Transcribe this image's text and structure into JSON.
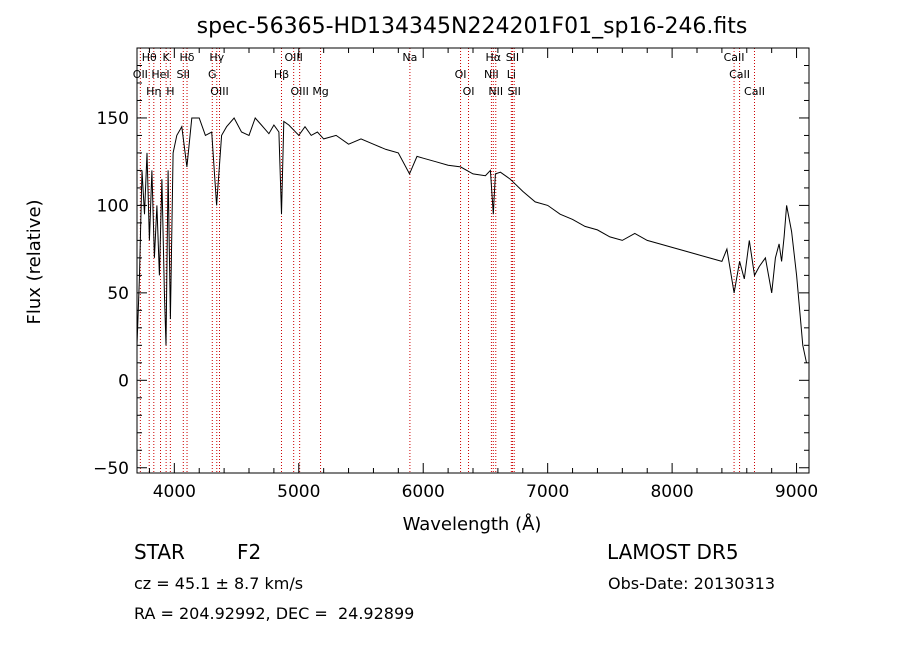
{
  "chart_data": {
    "type": "line",
    "title": "spec-56365-HD134345N224201F01_sp16-246.fits",
    "xlabel": "Wavelength (Å)",
    "ylabel": "Flux (relative)",
    "xlim": [
      3700,
      9100
    ],
    "ylim": [
      -53,
      190
    ],
    "xticks": [
      4000,
      5000,
      6000,
      7000,
      8000,
      9000
    ],
    "yticks": [
      -50,
      0,
      50,
      100,
      150
    ],
    "grid": false,
    "series": [
      {
        "x": [
          3700,
          3720,
          3740,
          3760,
          3780,
          3800,
          3820,
          3840,
          3860,
          3880,
          3900,
          3920,
          3933,
          3950,
          3968,
          3990,
          4020,
          4060,
          4101,
          4140,
          4200,
          4250,
          4300,
          4340,
          4380,
          4420,
          4480,
          4540,
          4600,
          4650,
          4700,
          4760,
          4800,
          4840,
          4861,
          4880,
          4920,
          4960,
          5000,
          5050,
          5100,
          5150,
          5200,
          5300,
          5400,
          5500,
          5600,
          5700,
          5800,
          5890,
          5950,
          6000,
          6100,
          6200,
          6300,
          6400,
          6500,
          6540,
          6563,
          6580,
          6620,
          6700,
          6800,
          6900,
          7000,
          7100,
          7200,
          7300,
          7400,
          7500,
          7600,
          7700,
          7800,
          7900,
          8000,
          8100,
          8200,
          8300,
          8400,
          8440,
          8498,
          8542,
          8580,
          8620,
          8662,
          8700,
          8750,
          8800,
          8830,
          8860,
          8880,
          8900,
          8920,
          8960,
          9000,
          9050,
          9080
        ],
        "y": [
          20,
          60,
          120,
          95,
          130,
          80,
          120,
          70,
          100,
          60,
          115,
          50,
          20,
          120,
          35,
          130,
          140,
          145,
          122,
          150,
          150,
          140,
          142,
          100,
          140,
          145,
          150,
          142,
          140,
          150,
          146,
          141,
          146,
          142,
          95,
          148,
          146,
          143,
          140,
          145,
          140,
          142,
          138,
          140,
          135,
          138,
          135,
          132,
          130,
          118,
          128,
          127,
          125,
          123,
          122,
          118,
          117,
          120,
          95,
          118,
          119,
          115,
          108,
          102,
          100,
          95,
          92,
          88,
          86,
          82,
          80,
          84,
          80,
          78,
          76,
          74,
          72,
          70,
          68,
          75,
          50,
          68,
          58,
          80,
          60,
          65,
          70,
          50,
          70,
          78,
          68,
          82,
          100,
          85,
          60,
          20,
          10
        ]
      }
    ],
    "lines": [
      {
        "name": "Hθ",
        "x": 3798
      },
      {
        "name": "OII",
        "x": 3727
      },
      {
        "name": "Hη",
        "x": 3835
      },
      {
        "name": "K",
        "x": 3934
      },
      {
        "name": "HeI",
        "x": 3889
      },
      {
        "name": "H",
        "x": 3968
      },
      {
        "name": "Hδ",
        "x": 4102
      },
      {
        "name": "SII",
        "x": 4072
      },
      {
        "name": "OIII",
        "x": 4363
      },
      {
        "name": "Hγ",
        "x": 4341
      },
      {
        "name": "G",
        "x": 4305
      },
      {
        "name": "OIII",
        "x": 5007
      },
      {
        "name": "OIII",
        "x": 4959
      },
      {
        "name": "Hβ",
        "x": 4861
      },
      {
        "name": "Mg",
        "x": 5175
      },
      {
        "name": "Na",
        "x": 5893
      },
      {
        "name": "OI",
        "x": 6300
      },
      {
        "name": "OI",
        "x": 6364
      },
      {
        "name": "Hα",
        "x": 6563
      },
      {
        "name": "NII",
        "x": 6548
      },
      {
        "name": "NII",
        "x": 6583
      },
      {
        "name": "SII",
        "x": 6717
      },
      {
        "name": "Li",
        "x": 6708
      },
      {
        "name": "SII",
        "x": 6731
      },
      {
        "name": "CaII",
        "x": 8498
      },
      {
        "name": "CaII",
        "x": 8542
      },
      {
        "name": "CaII",
        "x": 8662
      }
    ]
  },
  "info": {
    "object": "STAR",
    "subclass": "F2",
    "survey": "LAMOST DR5",
    "cz": "cz = 45.1 ± 8.7 km/s",
    "obs_date": "Obs-Date: 20130313",
    "coords": "RA = 204.92992, DEC =  24.92899"
  }
}
